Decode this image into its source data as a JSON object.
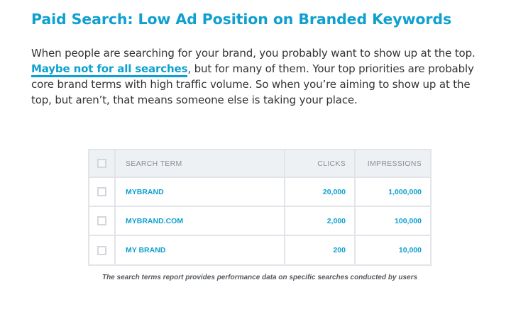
{
  "article": {
    "title": "Paid Search: Low Ad Position on Branded Keywords",
    "intro_before_link": "When people are searching for your brand, you probably want to show up at the top. ",
    "intro_link": "Maybe not for all searches",
    "intro_after_link": ", but for many of them. Your top priorities are probably core brand terms with high traffic volume. So when you’re aiming to show up at the top, but aren’t, that means someone else is taking your place."
  },
  "table": {
    "headers": {
      "search_term": "SEARCH TERM",
      "clicks": "CLICKS",
      "impressions": "IMPRESSIONS"
    },
    "rows": [
      {
        "term": "MYBRAND",
        "clicks": "20,000",
        "impressions": "1,000,000"
      },
      {
        "term": "MYBRAND.COM",
        "clicks": "2,000",
        "impressions": "100,000"
      },
      {
        "term": "MY BRAND",
        "clicks": "200",
        "impressions": "10,000"
      }
    ]
  },
  "caption": "The search terms report provides performance data on specific searches conducted by users",
  "colors": {
    "accent": "#0fa0cf",
    "body_text": "#333333",
    "header_bg": "#eef1f4",
    "border": "#e1e4e8"
  }
}
